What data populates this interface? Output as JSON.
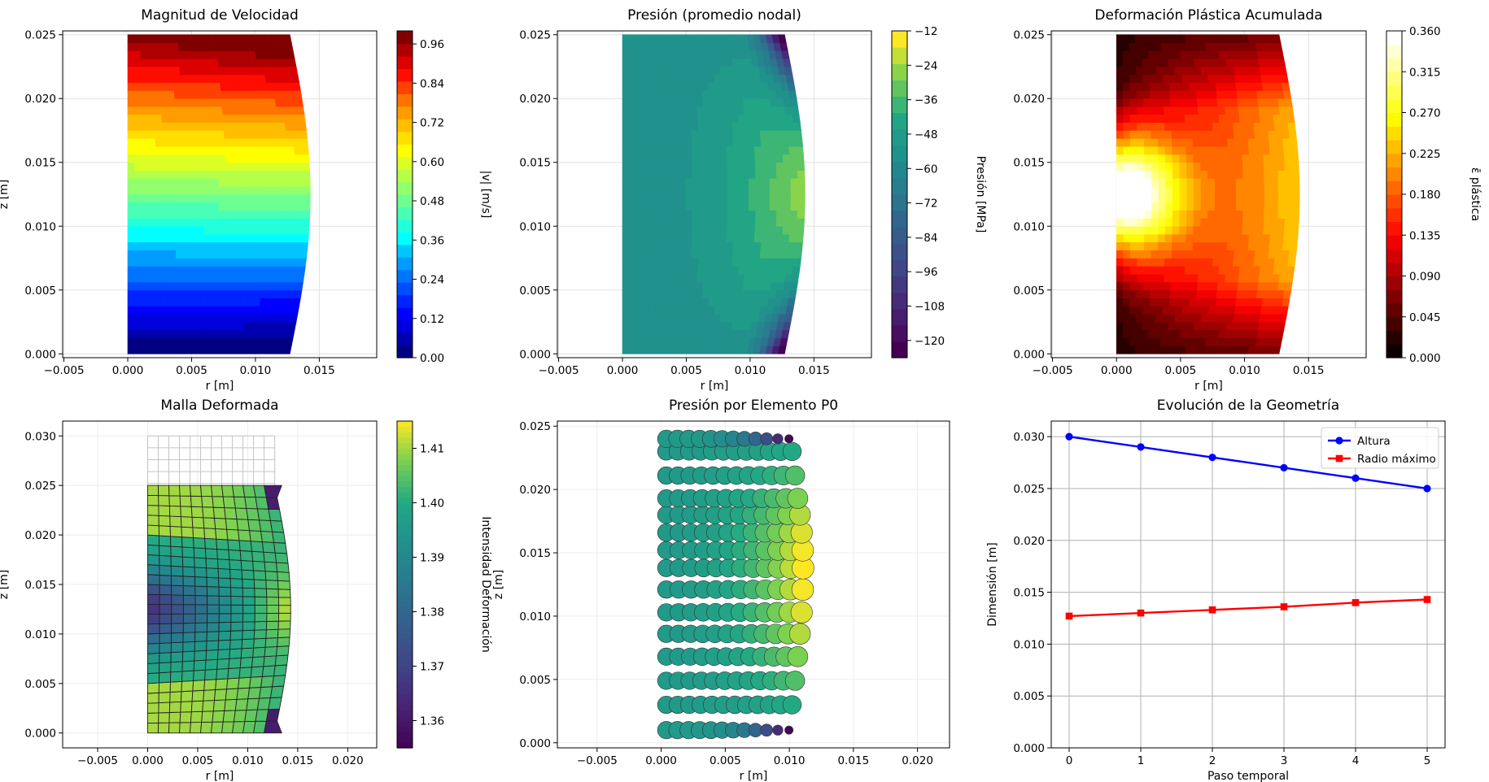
{
  "figure": {
    "background": "#ffffff",
    "accent_colors": {
      "series_altura": "#0000ff",
      "series_radio": "#ff0000",
      "grid": "#e0e0e0",
      "frame": "#000000"
    }
  },
  "chart_data": [
    {
      "type": "heatmap",
      "title": "Magnitud de Velocidad",
      "xlabel": "r [m]",
      "ylabel": "z [m]",
      "xlim": [
        -0.0051,
        0.0195
      ],
      "ylim": [
        -0.0003,
        0.0253
      ],
      "xticks": [
        "−0.005",
        "0.000",
        "0.005",
        "0.010",
        "0.015"
      ],
      "xtick_values": [
        -0.005,
        0.0,
        0.005,
        0.01,
        0.015
      ],
      "yticks": [
        "0.000",
        "0.005",
        "0.010",
        "0.015",
        "0.020",
        "0.025"
      ],
      "ytick_values": [
        0.0,
        0.005,
        0.01,
        0.015,
        0.02,
        0.025
      ],
      "colormap": "jet",
      "colorbar": {
        "label": "|v| [m/s]",
        "range": [
          0.0,
          1.0
        ],
        "ticks": [
          "0.00",
          "0.12",
          "0.24",
          "0.36",
          "0.48",
          "0.60",
          "0.72",
          "0.84",
          "0.96"
        ],
        "tick_values": [
          0.0,
          0.12,
          0.24,
          0.36,
          0.48,
          0.6,
          0.72,
          0.84,
          0.96
        ]
      },
      "field": "velocity-magnitude",
      "domain_profile": {
        "bottom_radius": 0.0127,
        "mid_radius": 0.0143,
        "top_radius": 0.0127,
        "height": 0.025
      }
    },
    {
      "type": "heatmap",
      "title": "Presión (promedio nodal)",
      "xlabel": "r [m]",
      "ylabel": "",
      "xlim": [
        -0.0051,
        0.0195
      ],
      "ylim": [
        -0.0003,
        0.0253
      ],
      "xticks": [
        "−0.005",
        "0.000",
        "0.005",
        "0.010",
        "0.015"
      ],
      "xtick_values": [
        -0.005,
        0.0,
        0.005,
        0.01,
        0.015
      ],
      "yticks": [
        "0.000",
        "0.005",
        "0.010",
        "0.015",
        "0.020",
        "0.025"
      ],
      "ytick_values": [
        0.0,
        0.005,
        0.01,
        0.015,
        0.02,
        0.025
      ],
      "colormap": "viridis",
      "colorbar": {
        "label": "Presión [MPa]",
        "range": [
          -126,
          -12
        ],
        "ticks": [
          "−12",
          "−24",
          "−36",
          "−48",
          "−60",
          "−72",
          "−84",
          "−96",
          "−108",
          "−120"
        ],
        "tick_values": [
          -12,
          -24,
          -36,
          -48,
          -60,
          -72,
          -84,
          -96,
          -108,
          -120
        ]
      },
      "field": "pressure-nodal",
      "domain_profile": {
        "bottom_radius": 0.0127,
        "mid_radius": 0.0143,
        "top_radius": 0.0127,
        "height": 0.025
      }
    },
    {
      "type": "heatmap",
      "title": "Deformación Plástica Acumulada",
      "xlabel": "r [m]",
      "ylabel": "",
      "xlim": [
        -0.0051,
        0.0195
      ],
      "ylim": [
        -0.0003,
        0.0253
      ],
      "xticks": [
        "−0.005",
        "0.000",
        "0.005",
        "0.010",
        "0.015"
      ],
      "xtick_values": [
        -0.005,
        0.0,
        0.005,
        0.01,
        0.015
      ],
      "yticks": [
        "0.000",
        "0.005",
        "0.010",
        "0.015",
        "0.020",
        "0.025"
      ],
      "ytick_values": [
        0.0,
        0.005,
        0.01,
        0.015,
        0.02,
        0.025
      ],
      "colormap": "hot",
      "colorbar": {
        "label": "ε̄ plástica",
        "range": [
          0.0,
          0.36
        ],
        "ticks": [
          "0.000",
          "0.045",
          "0.090",
          "0.135",
          "0.180",
          "0.225",
          "0.270",
          "0.315",
          "0.360"
        ],
        "tick_values": [
          0.0,
          0.045,
          0.09,
          0.135,
          0.18,
          0.225,
          0.27,
          0.315,
          0.36
        ]
      },
      "field": "plastic-strain",
      "domain_profile": {
        "bottom_radius": 0.0127,
        "mid_radius": 0.0143,
        "top_radius": 0.0127,
        "height": 0.025
      }
    },
    {
      "type": "heatmap",
      "title": "Malla Deformada",
      "xlabel": "r [m]",
      "ylabel": "z [m]",
      "xlim": [
        -0.0085,
        0.0229
      ],
      "ylim": [
        -0.0015,
        0.0315
      ],
      "xticks": [
        "−0.005",
        "0.000",
        "0.005",
        "0.010",
        "0.015",
        "0.020"
      ],
      "xtick_values": [
        -0.005,
        0.0,
        0.005,
        0.01,
        0.015,
        0.02
      ],
      "yticks": [
        "0.000",
        "0.005",
        "0.010",
        "0.015",
        "0.020",
        "0.025",
        "0.030"
      ],
      "ytick_values": [
        0.0,
        0.005,
        0.01,
        0.015,
        0.02,
        0.025,
        0.03
      ],
      "colormap": "viridis",
      "colorbar": {
        "label": "Intensidad Deformación",
        "range": [
          1.355,
          1.415
        ],
        "ticks": [
          "1.36",
          "1.37",
          "1.38",
          "1.39",
          "1.40",
          "1.41"
        ],
        "tick_values": [
          1.36,
          1.37,
          1.38,
          1.39,
          1.4,
          1.41
        ]
      },
      "mesh": {
        "radial_cells": 12,
        "axial_cells": 25,
        "original_height": 0.03,
        "original_radius": 0.0127,
        "deformed_height": 0.025
      }
    },
    {
      "type": "scatter",
      "title": "Presión por Elemento P0",
      "xlabel": "r [m]",
      "ylabel": "z [m]",
      "xlim": [
        -0.0081,
        0.0225
      ],
      "ylim": [
        -0.0004,
        0.0254
      ],
      "xticks": [
        "−0.005",
        "0.000",
        "0.005",
        "0.010",
        "0.015",
        "0.020"
      ],
      "xtick_values": [
        -0.005,
        0.0,
        0.005,
        0.01,
        0.015,
        0.02
      ],
      "yticks": [
        "0.000",
        "0.005",
        "0.010",
        "0.015",
        "0.020",
        "0.025"
      ],
      "ytick_values": [
        0.0,
        0.005,
        0.01,
        0.015,
        0.02,
        0.025
      ],
      "colormap": "viridis",
      "rows_z": [
        0.001,
        0.003,
        0.0049,
        0.0068,
        0.0086,
        0.0103,
        0.0121,
        0.0138,
        0.0152,
        0.0166,
        0.018,
        0.0193,
        0.0211,
        0.023,
        0.024
      ],
      "columns_per_row": 12,
      "radial_spacing": 0.00087
    },
    {
      "type": "line",
      "title": "Evolución de la Geometría",
      "xlabel": "Paso temporal",
      "ylabel": "Dimensión [m]",
      "xlim": [
        -0.25,
        5.25
      ],
      "ylim": [
        0.0,
        0.0315
      ],
      "xticks": [
        "0",
        "1",
        "2",
        "3",
        "4",
        "5"
      ],
      "xtick_values": [
        0,
        1,
        2,
        3,
        4,
        5
      ],
      "yticks": [
        "0.000",
        "0.005",
        "0.010",
        "0.015",
        "0.020",
        "0.025",
        "0.030"
      ],
      "ytick_values": [
        0.0,
        0.005,
        0.01,
        0.015,
        0.02,
        0.025,
        0.03
      ],
      "grid": true,
      "legend_position": "top-right",
      "x": [
        0,
        1,
        2,
        3,
        4,
        5
      ],
      "series": [
        {
          "name": "Altura",
          "values": [
            0.03,
            0.029,
            0.028,
            0.027,
            0.026,
            0.025
          ],
          "color": "#0000ff",
          "marker": "circle"
        },
        {
          "name": "Radio máximo",
          "values": [
            0.0127,
            0.013,
            0.0133,
            0.0136,
            0.014,
            0.0143
          ],
          "color": "#ff0000",
          "marker": "square"
        }
      ]
    }
  ]
}
